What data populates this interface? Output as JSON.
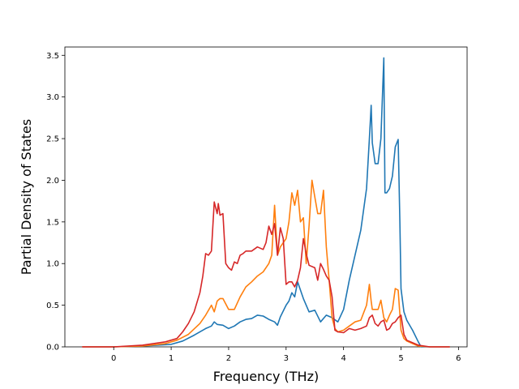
{
  "chart_data": {
    "type": "line",
    "title": "",
    "xlabel": "Frequency (THz)",
    "ylabel": "Partial Density of States",
    "xlim": [
      -0.85,
      6.15
    ],
    "ylim": [
      0,
      3.6
    ],
    "xticks": [
      0,
      1,
      2,
      3,
      4,
      5,
      6
    ],
    "xtick_labels": [
      "0",
      "1",
      "2",
      "3",
      "4",
      "5",
      "6"
    ],
    "yticks": [
      0.0,
      0.5,
      1.0,
      1.5,
      2.0,
      2.5,
      3.0,
      3.5
    ],
    "ytick_labels": [
      "0.0",
      "0.5",
      "1.0",
      "1.5",
      "2.0",
      "2.5",
      "3.0",
      "3.5"
    ],
    "grid": false,
    "legend": "none",
    "series": [
      {
        "color": "#1f77b4",
        "x": [
          -0.55,
          0.0,
          0.5,
          1.0,
          1.2,
          1.4,
          1.6,
          1.7,
          1.75,
          1.8,
          1.9,
          2.0,
          2.1,
          2.2,
          2.3,
          2.4,
          2.5,
          2.6,
          2.7,
          2.8,
          2.85,
          2.9,
          3.0,
          3.05,
          3.1,
          3.15,
          3.2,
          3.3,
          3.4,
          3.5,
          3.6,
          3.7,
          3.8,
          3.9,
          4.0,
          4.1,
          4.2,
          4.3,
          4.4,
          4.45,
          4.48,
          4.5,
          4.55,
          4.6,
          4.65,
          4.7,
          4.72,
          4.75,
          4.8,
          4.85,
          4.9,
          4.95,
          4.98,
          5.0,
          5.05,
          5.1,
          5.2,
          5.3,
          5.35,
          5.5,
          5.85
        ],
        "y": [
          0.0,
          0.0,
          0.01,
          0.03,
          0.07,
          0.14,
          0.22,
          0.25,
          0.3,
          0.27,
          0.26,
          0.22,
          0.25,
          0.3,
          0.33,
          0.34,
          0.38,
          0.37,
          0.33,
          0.3,
          0.26,
          0.36,
          0.5,
          0.55,
          0.65,
          0.6,
          0.78,
          0.58,
          0.42,
          0.44,
          0.3,
          0.38,
          0.35,
          0.3,
          0.45,
          0.8,
          1.1,
          1.4,
          1.9,
          2.5,
          2.9,
          2.45,
          2.2,
          2.2,
          2.5,
          3.47,
          1.85,
          1.85,
          1.9,
          2.05,
          2.4,
          2.49,
          1.5,
          0.7,
          0.42,
          0.32,
          0.2,
          0.06,
          0.0,
          0.0,
          0.0
        ]
      },
      {
        "color": "#ff7f0e",
        "x": [
          -0.55,
          0.0,
          0.5,
          0.9,
          1.1,
          1.3,
          1.5,
          1.6,
          1.7,
          1.75,
          1.8,
          1.85,
          1.9,
          2.0,
          2.1,
          2.2,
          2.3,
          2.4,
          2.5,
          2.6,
          2.7,
          2.75,
          2.8,
          2.85,
          2.9,
          3.0,
          3.05,
          3.1,
          3.15,
          3.2,
          3.25,
          3.3,
          3.35,
          3.4,
          3.45,
          3.5,
          3.55,
          3.6,
          3.65,
          3.7,
          3.75,
          3.8,
          3.85,
          3.9,
          4.0,
          4.1,
          4.2,
          4.3,
          4.4,
          4.45,
          4.48,
          4.5,
          4.55,
          4.6,
          4.65,
          4.7,
          4.75,
          4.8,
          4.85,
          4.9,
          4.95,
          5.0,
          5.05,
          5.1,
          5.2,
          5.3,
          5.5,
          5.85
        ],
        "y": [
          0.0,
          0.0,
          0.01,
          0.04,
          0.08,
          0.15,
          0.28,
          0.38,
          0.5,
          0.42,
          0.55,
          0.58,
          0.58,
          0.45,
          0.45,
          0.6,
          0.72,
          0.78,
          0.85,
          0.9,
          1.0,
          1.1,
          1.7,
          1.1,
          1.2,
          1.3,
          1.5,
          1.85,
          1.7,
          1.88,
          1.5,
          1.55,
          1.0,
          1.45,
          2.0,
          1.8,
          1.6,
          1.6,
          1.88,
          1.2,
          0.8,
          0.35,
          0.22,
          0.18,
          0.2,
          0.25,
          0.3,
          0.32,
          0.5,
          0.75,
          0.55,
          0.45,
          0.45,
          0.45,
          0.56,
          0.35,
          0.3,
          0.38,
          0.45,
          0.7,
          0.68,
          0.2,
          0.1,
          0.07,
          0.04,
          0.01,
          0.0,
          0.0
        ]
      },
      {
        "color": "#d62728",
        "x": [
          -0.55,
          0.0,
          0.5,
          0.9,
          1.1,
          1.2,
          1.3,
          1.4,
          1.5,
          1.55,
          1.6,
          1.65,
          1.7,
          1.75,
          1.8,
          1.82,
          1.85,
          1.9,
          1.95,
          2.0,
          2.05,
          2.1,
          2.15,
          2.2,
          2.25,
          2.3,
          2.4,
          2.5,
          2.6,
          2.65,
          2.7,
          2.75,
          2.8,
          2.85,
          2.9,
          2.95,
          3.0,
          3.05,
          3.1,
          3.15,
          3.2,
          3.25,
          3.3,
          3.35,
          3.4,
          3.5,
          3.55,
          3.6,
          3.65,
          3.7,
          3.75,
          3.8,
          3.85,
          3.9,
          4.0,
          4.1,
          4.2,
          4.3,
          4.4,
          4.45,
          4.5,
          4.55,
          4.6,
          4.65,
          4.7,
          4.75,
          4.8,
          4.85,
          4.9,
          4.95,
          5.0,
          5.05,
          5.1,
          5.2,
          5.3,
          5.5,
          5.85
        ],
        "y": [
          0.0,
          0.0,
          0.02,
          0.06,
          0.1,
          0.18,
          0.28,
          0.42,
          0.65,
          0.85,
          1.12,
          1.1,
          1.15,
          1.74,
          1.6,
          1.72,
          1.58,
          1.6,
          1.0,
          0.95,
          0.92,
          1.02,
          1.0,
          1.1,
          1.12,
          1.15,
          1.15,
          1.2,
          1.17,
          1.25,
          1.45,
          1.35,
          1.48,
          1.1,
          1.43,
          1.3,
          0.75,
          0.78,
          0.78,
          0.72,
          0.8,
          0.95,
          1.3,
          1.12,
          0.98,
          0.95,
          0.8,
          1.0,
          0.93,
          0.85,
          0.8,
          0.6,
          0.2,
          0.18,
          0.17,
          0.22,
          0.2,
          0.22,
          0.25,
          0.35,
          0.38,
          0.28,
          0.25,
          0.3,
          0.32,
          0.2,
          0.22,
          0.28,
          0.3,
          0.35,
          0.38,
          0.15,
          0.08,
          0.05,
          0.02,
          0.0,
          0.0
        ]
      }
    ]
  }
}
